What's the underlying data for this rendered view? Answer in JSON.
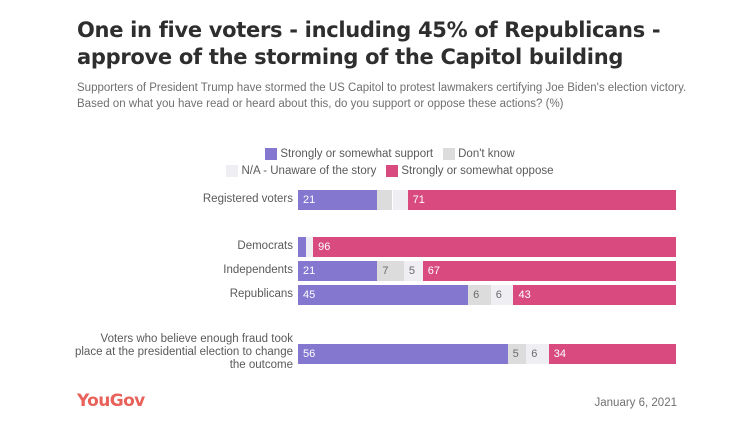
{
  "title": "One in five voters - including 45% of Republicans - approve of the storming of the Capitol building",
  "subtitle": "Supporters of President Trump have stormed the US Capitol to protest lawmakers certifying Joe Biden's election victory. Based on what you have read or heard about this, do you support or oppose these actions? (%)",
  "footer": {
    "brand": "YouGov",
    "date": "January 6, 2021"
  },
  "colors": {
    "support": "#8477d0",
    "dont_know": "#dcdcdc",
    "na": "#eeeef3",
    "oppose": "#d94b7f"
  },
  "chart_data": {
    "type": "bar",
    "orientation": "horizontal",
    "stacked": true,
    "title": "One in five voters - including 45% of Republicans - approve of the storming of the Capitol building",
    "xlabel": "",
    "ylabel": "",
    "xlim": [
      0,
      100
    ],
    "grid": false,
    "legend_position": "top-center",
    "categories": [
      "Registered voters",
      "Democrats",
      "Independents",
      "Republicans",
      "Voters who believe enough fraud took place at the presidential election to change the outcome"
    ],
    "series": [
      {
        "name": "Strongly or somewhat support",
        "key": "support",
        "values": [
          21,
          2,
          21,
          45,
          56
        ],
        "labels": [
          "21",
          "",
          "21",
          "45",
          "56"
        ]
      },
      {
        "name": "Don't know",
        "key": "dont_know",
        "values": [
          4,
          0,
          7,
          6,
          5
        ],
        "labels": [
          "",
          "",
          "7",
          "6",
          "5"
        ]
      },
      {
        "name": "N/A - Unaware of the story",
        "key": "na",
        "values": [
          4,
          2,
          5,
          6,
          6
        ],
        "labels": [
          "",
          "",
          "5",
          "6",
          "6"
        ]
      },
      {
        "name": "Strongly or somewhat oppose",
        "key": "oppose",
        "values": [
          71,
          96,
          67,
          43,
          34
        ],
        "labels": [
          "71",
          "96",
          "67",
          "43",
          "34"
        ]
      }
    ],
    "legend": {
      "rows": [
        [
          "Strongly or somewhat support",
          "Don't know"
        ],
        [
          "N/A - Unaware of the story",
          "Strongly or somewhat oppose"
        ]
      ]
    }
  }
}
